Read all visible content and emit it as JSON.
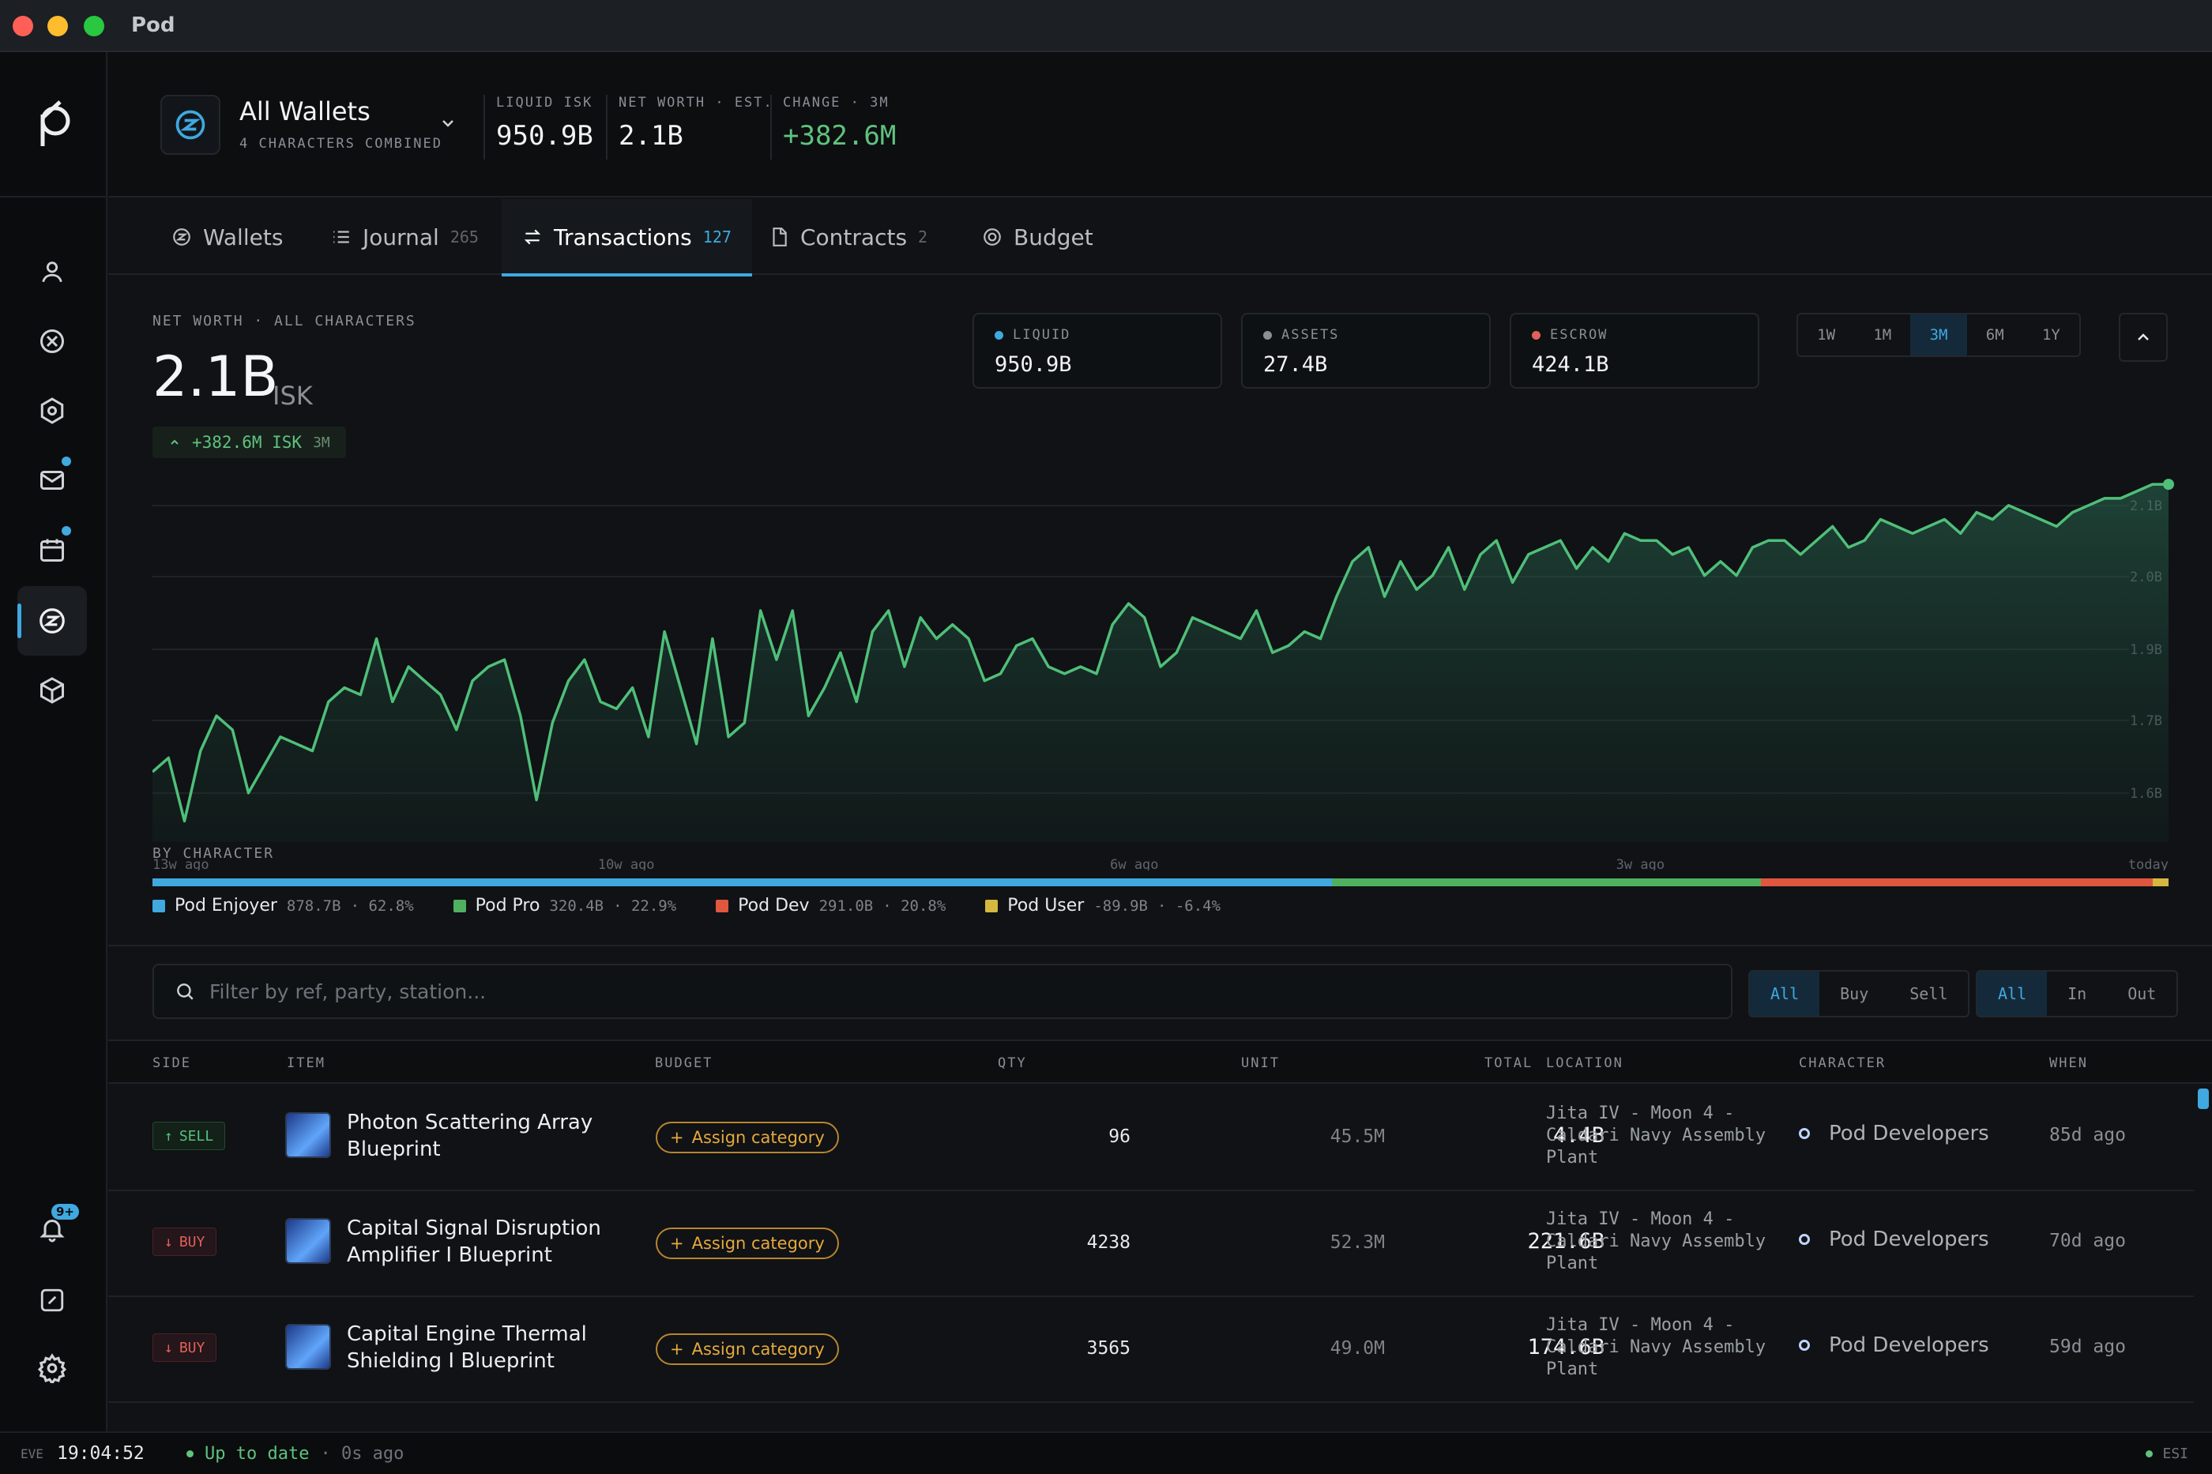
{
  "window": {
    "title": "Pod"
  },
  "colors": {
    "accent": "#3fa9e0",
    "positive": "#5fc27e",
    "negative": "#e0605a",
    "amber": "#e6a93c"
  },
  "sidebar": {
    "items": [
      {
        "icon": "user-icon"
      },
      {
        "icon": "crosshair-icon"
      },
      {
        "icon": "hexagon-icon"
      },
      {
        "icon": "mail-icon",
        "dot": true
      },
      {
        "icon": "calendar-icon",
        "dot": true
      },
      {
        "icon": "wallet-icon",
        "active": true
      },
      {
        "icon": "cube-icon"
      }
    ],
    "bottom": [
      {
        "icon": "bell-icon",
        "badge": "9+"
      },
      {
        "icon": "gauge-icon"
      },
      {
        "icon": "settings-icon"
      }
    ]
  },
  "header": {
    "wallet_name": "All Wallets",
    "wallet_sub": "4 CHARACTERS COMBINED",
    "stats": [
      {
        "label": "LIQUID ISK",
        "value": "950.9B"
      },
      {
        "label": "NET WORTH · EST.",
        "value": "2.1B"
      },
      {
        "label": "CHANGE · 3M",
        "value": "+382.6M"
      }
    ]
  },
  "tabs": [
    {
      "label": "Wallets",
      "count": ""
    },
    {
      "label": "Journal",
      "count": "265"
    },
    {
      "label": "Transactions",
      "count": "127"
    },
    {
      "label": "Contracts",
      "count": "2"
    },
    {
      "label": "Budget",
      "count": ""
    }
  ],
  "networth": {
    "label": "NET WORTH · ALL CHARACTERS",
    "value": "2.1B",
    "unit": "ISK",
    "change": "+382.6M ISK",
    "change_period": "3M"
  },
  "metrics": [
    {
      "label": "LIQUID",
      "value": "950.9B",
      "color": "#3fa9e0"
    },
    {
      "label": "ASSETS",
      "value": "27.4B",
      "color": "#8a8f96"
    },
    {
      "label": "ESCROW",
      "value": "424.1B",
      "color": "#e0605a"
    }
  ],
  "range": {
    "options": [
      "1W",
      "1M",
      "3M",
      "6M",
      "1Y"
    ],
    "selected": "3M"
  },
  "chart_data": {
    "type": "area",
    "y_ticks": [
      "2.1B",
      "2.0B",
      "1.9B",
      "1.7B",
      "1.6B"
    ],
    "x_ticks": [
      "13w ago",
      "10w ago",
      "6w ago",
      "3w ago",
      "today"
    ],
    "ylim": [
      1.6,
      2.1
    ],
    "values": [
      1.7,
      1.72,
      1.63,
      1.73,
      1.78,
      1.76,
      1.67,
      1.71,
      1.75,
      1.74,
      1.73,
      1.8,
      1.82,
      1.81,
      1.89,
      1.8,
      1.85,
      1.83,
      1.81,
      1.76,
      1.83,
      1.85,
      1.86,
      1.78,
      1.66,
      1.77,
      1.83,
      1.86,
      1.8,
      1.79,
      1.82,
      1.75,
      1.9,
      1.82,
      1.74,
      1.89,
      1.75,
      1.77,
      1.93,
      1.86,
      1.93,
      1.78,
      1.82,
      1.87,
      1.8,
      1.9,
      1.93,
      1.85,
      1.92,
      1.89,
      1.91,
      1.89,
      1.83,
      1.84,
      1.88,
      1.89,
      1.85,
      1.84,
      1.85,
      1.84,
      1.91,
      1.94,
      1.92,
      1.85,
      1.87,
      1.92,
      1.91,
      1.9,
      1.89,
      1.93,
      1.87,
      1.88,
      1.9,
      1.89,
      1.95,
      2.0,
      2.02,
      1.95,
      2.0,
      1.96,
      1.98,
      2.02,
      1.96,
      2.01,
      2.03,
      1.97,
      2.01,
      2.02,
      2.03,
      1.99,
      2.02,
      2.0,
      2.04,
      2.03,
      2.03,
      2.01,
      2.02,
      1.98,
      2.0,
      1.98,
      2.02,
      2.03,
      2.03,
      2.01,
      2.03,
      2.05,
      2.02,
      2.03,
      2.06,
      2.05,
      2.04,
      2.05,
      2.06,
      2.04,
      2.07,
      2.06,
      2.08,
      2.07,
      2.06,
      2.05,
      2.07,
      2.08,
      2.09,
      2.09,
      2.1,
      2.11,
      2.11
    ],
    "grid": true,
    "color": "#4fbf79"
  },
  "by_character": {
    "label": "BY CHARACTER",
    "items": [
      {
        "name": "Pod Enjoyer",
        "value": "878.7B",
        "pct": "· 62.8%",
        "share": 58.5,
        "color": "#3fa9e0"
      },
      {
        "name": "Pod Pro",
        "value": "320.4B",
        "pct": "· 22.9%",
        "share": 21.3,
        "color": "#4fb05f"
      },
      {
        "name": "Pod Dev",
        "value": "291.0B",
        "pct": "· 20.8%",
        "share": 19.4,
        "color": "#e0563f"
      },
      {
        "name": "Pod User",
        "value": "-89.9B",
        "pct": "· -6.4%",
        "share": 0.8,
        "color": "#d6b840"
      }
    ]
  },
  "filter": {
    "placeholder": "Filter by ref, party, station...",
    "side_options": [
      "All",
      "Buy",
      "Sell"
    ],
    "side_selected": "All",
    "dir_options": [
      "All",
      "In",
      "Out"
    ],
    "dir_selected": "All"
  },
  "table": {
    "columns": [
      "SIDE",
      "ITEM",
      "BUDGET",
      "QTY",
      "UNIT",
      "TOTAL",
      "LOCATION",
      "CHARACTER",
      "WHEN"
    ],
    "rows": [
      {
        "side": "SELL",
        "side_arrow": "↑",
        "item": "Photon Scattering Array Blueprint",
        "budget": "Assign category",
        "qty": "96",
        "unit": "45.5M",
        "total": "4.4B",
        "location": "Jita IV - Moon 4 - Caldari Navy Assembly Plant",
        "character": "Pod Developers",
        "when": "85d ago"
      },
      {
        "side": "BUY",
        "side_arrow": "↓",
        "item": "Capital Signal Disruption Amplifier I Blueprint",
        "budget": "Assign category",
        "qty": "4238",
        "unit": "52.3M",
        "total": "221.6B",
        "location": "Jita IV - Moon 4 - Caldari Navy Assembly Plant",
        "character": "Pod Developers",
        "when": "70d ago"
      },
      {
        "side": "BUY",
        "side_arrow": "↓",
        "item": "Capital Engine Thermal Shielding I Blueprint",
        "budget": "Assign category",
        "qty": "3565",
        "unit": "49.0M",
        "total": "174.6B",
        "location": "Jita IV - Moon 4 - Caldari Navy Assembly Plant",
        "character": "Pod Developers",
        "when": "59d ago"
      }
    ]
  },
  "status": {
    "eve_label": "EVE",
    "clock": "19:04:52",
    "sync": "Up to date",
    "sync_ago": "· 0s ago",
    "esi": "ESI"
  }
}
